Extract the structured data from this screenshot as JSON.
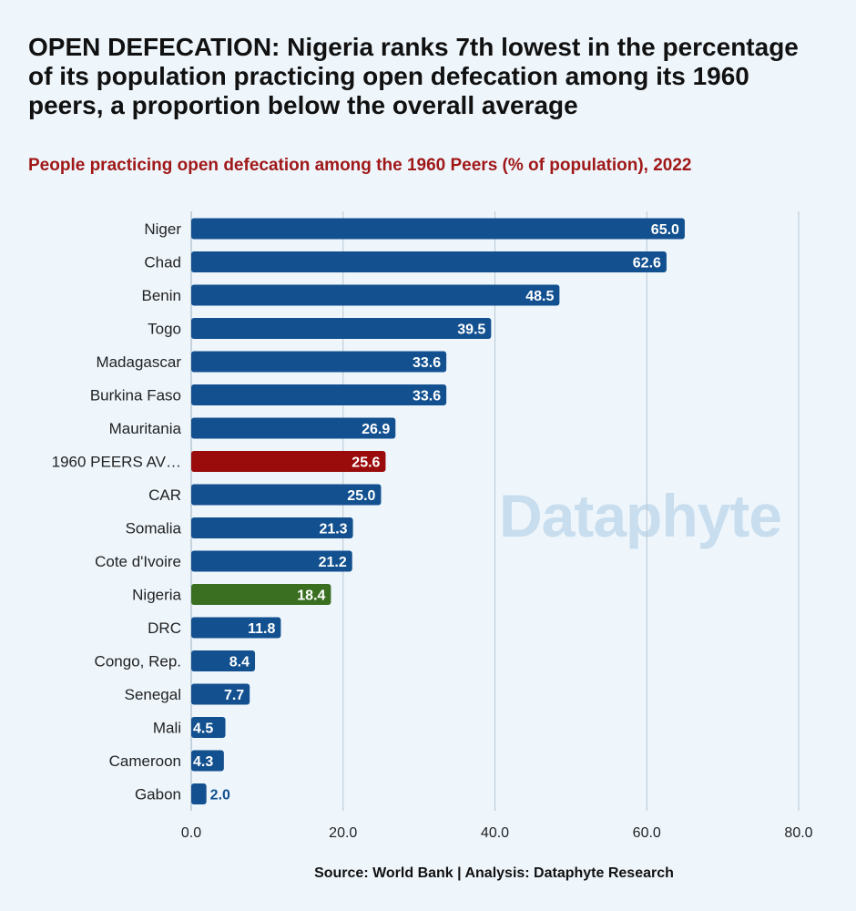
{
  "header": {
    "title": "OPEN DEFECATION: Nigeria ranks 7th  lowest in the percentage of its population practicing open defecation among its 1960 peers, a proportion below the overall average",
    "subtitle": "People practicing open defecation among the 1960 Peers (% of population), 2022"
  },
  "footer": {
    "source": "Source: World Bank | Analysis: Dataphyte Research"
  },
  "watermark": "Dataphyte",
  "colors": {
    "default_bar": "#12508f",
    "average_bar": "#9a0b0b",
    "nigeria_bar": "#3a6f22",
    "gridline": "#b9c6d2",
    "label_outside": "#12508f"
  },
  "chart_data": {
    "type": "bar",
    "orientation": "horizontal",
    "title": "People practicing open defecation among the 1960 Peers (% of population), 2022",
    "categories": [
      "Niger",
      "Chad",
      "Benin",
      "Togo",
      "Madagascar",
      "Burkina Faso",
      "Mauritania",
      "1960 PEERS AV…",
      "CAR",
      "Somalia",
      "Cote d'Ivoire",
      "Nigeria",
      "DRC",
      "Congo, Rep.",
      "Senegal",
      "Mali",
      "Cameroon",
      "Gabon"
    ],
    "values": [
      65.0,
      62.6,
      48.5,
      39.5,
      33.6,
      33.6,
      26.9,
      25.6,
      25.0,
      21.3,
      21.2,
      18.4,
      11.8,
      8.4,
      7.7,
      4.5,
      4.3,
      2.0
    ],
    "data_labels": [
      "65.0",
      "62.6",
      "48.5",
      "39.5",
      "33.6",
      "33.6",
      "26.9",
      "25.6",
      "25.0",
      "21.3",
      "21.2",
      "18.4",
      "11.8",
      "8.4",
      "7.7",
      "4.5",
      "4.3",
      "2.0"
    ],
    "highlight": {
      "1960 PEERS AV…": "average",
      "Nigeria": "nigeria"
    },
    "xlim": [
      0,
      80
    ],
    "xticks": [
      0,
      20,
      40,
      60,
      80
    ],
    "xtick_labels": [
      "0.0",
      "20.0",
      "40.0",
      "60.0",
      "80.0"
    ],
    "grid": "vertical",
    "legend": "none"
  }
}
